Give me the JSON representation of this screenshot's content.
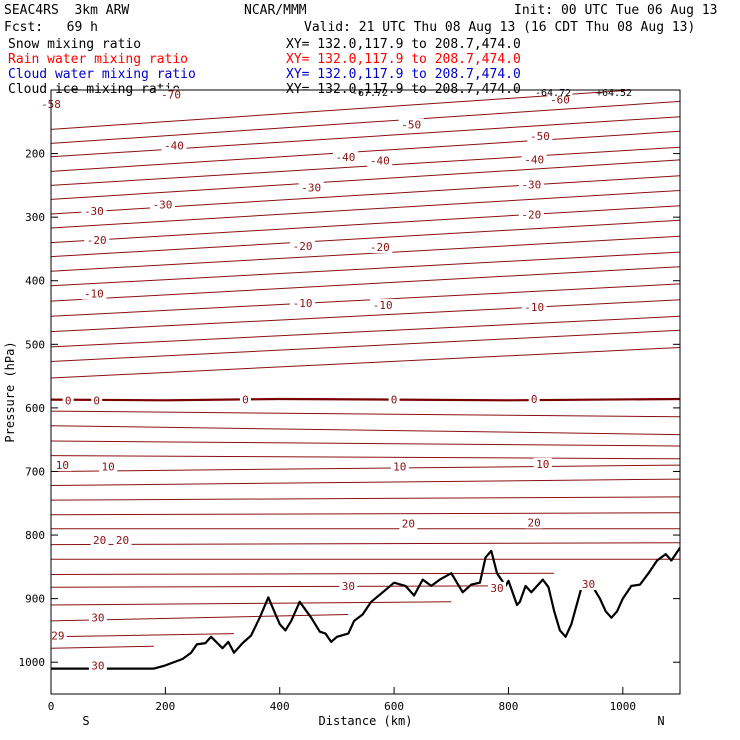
{
  "header": {
    "model": "SEAC4RS  3km ARW",
    "org": "NCAR/MMM",
    "init": "Init: 00 UTC Tue 06 Aug 13",
    "fcst": "Fcst:   69 h",
    "valid": "Valid: 21 UTC Thu 08 Aug 13 (16 CDT Thu 08 Aug 13)"
  },
  "legend": [
    {
      "name": "Snow mixing ratio",
      "xy": "XY= 132.0,117.9 to 208.7,474.0",
      "color": "#000000"
    },
    {
      "name": "Rain water mixing ratio",
      "xy": "XY= 132.0,117.9 to 208.7,474.0",
      "color": "#ff0000"
    },
    {
      "name": "Cloud water mixing ratio",
      "xy": "XY= 132.0,117.9 to 208.7,474.0",
      "color": "#0000cc"
    },
    {
      "name": "Cloud ice mixing ratio",
      "xy": "XY= 132.0,117.9 to 208.7,474.0",
      "color": "#000000"
    }
  ],
  "chart_data": {
    "type": "line",
    "xlabel": "Distance (km)",
    "ylabel": "Pressure (hPa)",
    "xlim": [
      0,
      1100
    ],
    "ylim": [
      1050,
      100
    ],
    "x_ticks": [
      0,
      200,
      400,
      600,
      800,
      1000
    ],
    "y_ticks": [
      200,
      300,
      400,
      500,
      600,
      700,
      800,
      900,
      1000
    ],
    "x_end_labels": {
      "left": "S",
      "right": "N"
    },
    "top_annotations": [
      "-67.72",
      "-64.72",
      "+64.52"
    ],
    "contour_color": "#8b1010",
    "freezing_level_color": "#7a0000",
    "terrain_color": "#000000",
    "contours": [
      {
        "points": [
          [
            0,
            162
          ],
          [
            1100,
            95
          ]
        ],
        "labels": [
          [
            0,
            122,
            "-58"
          ],
          [
            210,
            107,
            "-70"
          ]
        ]
      },
      {
        "points": [
          [
            0,
            184
          ],
          [
            1100,
            118
          ]
        ],
        "labels": [
          [
            890,
            115,
            "-60"
          ]
        ]
      },
      {
        "points": [
          [
            0,
            205
          ],
          [
            1100,
            142
          ]
        ],
        "labels": [
          [
            630,
            154,
            "-50"
          ]
        ]
      },
      {
        "points": [
          [
            0,
            228
          ],
          [
            1100,
            165
          ]
        ],
        "labels": [
          [
            855,
            172,
            "-50"
          ]
        ]
      },
      {
        "points": [
          [
            0,
            250
          ],
          [
            1100,
            190
          ]
        ],
        "labels": [
          [
            215,
            187,
            "-40"
          ],
          [
            515,
            205,
            "-40"
          ]
        ]
      },
      {
        "points": [
          [
            0,
            272
          ],
          [
            1100,
            210
          ]
        ],
        "labels": [
          [
            575,
            211,
            "-40"
          ],
          [
            845,
            209,
            "-40"
          ]
        ]
      },
      {
        "points": [
          [
            0,
            295
          ],
          [
            1100,
            235
          ]
        ],
        "labels": [
          [
            75,
            290,
            "-30"
          ],
          [
            195,
            280,
            "-30"
          ],
          [
            455,
            253,
            "-30"
          ]
        ]
      },
      {
        "points": [
          [
            0,
            317
          ],
          [
            1100,
            258
          ]
        ],
        "labels": [
          [
            840,
            249,
            "-30"
          ]
        ]
      },
      {
        "points": [
          [
            0,
            340
          ],
          [
            1100,
            282
          ]
        ],
        "labels": [
          [
            80,
            336,
            "-20"
          ]
        ]
      },
      {
        "points": [
          [
            0,
            362
          ],
          [
            1100,
            305
          ]
        ],
        "labels": [
          [
            440,
            345,
            "-20"
          ],
          [
            575,
            347,
            "-20"
          ]
        ]
      },
      {
        "points": [
          [
            0,
            385
          ],
          [
            1100,
            330
          ]
        ],
        "labels": [
          [
            840,
            296,
            "-20"
          ]
        ]
      },
      {
        "points": [
          [
            0,
            408
          ],
          [
            1100,
            355
          ]
        ],
        "labels": [
          [
            75,
            420,
            "-10"
          ]
        ]
      },
      {
        "points": [
          [
            0,
            432
          ],
          [
            1100,
            378
          ]
        ],
        "labels": [
          [
            440,
            435,
            "-10"
          ],
          [
            580,
            438,
            "-10"
          ],
          [
            845,
            441,
            "-10"
          ]
        ]
      },
      {
        "points": [
          [
            0,
            456
          ],
          [
            1100,
            405
          ]
        ],
        "labels": []
      },
      {
        "points": [
          [
            0,
            480
          ],
          [
            1100,
            430
          ]
        ],
        "labels": []
      },
      {
        "points": [
          [
            0,
            504
          ],
          [
            1100,
            456
          ]
        ],
        "labels": []
      },
      {
        "points": [
          [
            0,
            527
          ],
          [
            1100,
            478
          ]
        ],
        "labels": []
      },
      {
        "points": [
          [
            0,
            553
          ],
          [
            1100,
            505
          ]
        ],
        "labels": []
      },
      {
        "points": [
          [
            0,
            605
          ],
          [
            1100,
            614
          ]
        ],
        "labels": []
      },
      {
        "points": [
          [
            0,
            628
          ],
          [
            1100,
            642
          ]
        ],
        "labels": []
      },
      {
        "points": [
          [
            0,
            652
          ],
          [
            1100,
            660
          ]
        ],
        "labels": []
      },
      {
        "points": [
          [
            0,
            675
          ],
          [
            1100,
            680
          ]
        ],
        "labels": [
          [
            20,
            690,
            "10"
          ],
          [
            100,
            692,
            "10"
          ],
          [
            610,
            692,
            "10"
          ],
          [
            860,
            688,
            "10"
          ]
        ]
      },
      {
        "points": [
          [
            0,
            700
          ],
          [
            1100,
            690
          ]
        ],
        "labels": []
      },
      {
        "points": [
          [
            0,
            722
          ],
          [
            1100,
            712
          ]
        ],
        "labels": []
      },
      {
        "points": [
          [
            0,
            745
          ],
          [
            1100,
            740
          ]
        ],
        "labels": []
      },
      {
        "points": [
          [
            0,
            768
          ],
          [
            1100,
            765
          ]
        ],
        "labels": [
          [
            625,
            782,
            "20"
          ],
          [
            845,
            780,
            "20"
          ]
        ]
      },
      {
        "points": [
          [
            0,
            790
          ],
          [
            1100,
            790
          ]
        ],
        "labels": [
          [
            85,
            808,
            "20"
          ],
          [
            125,
            808,
            "20"
          ]
        ]
      },
      {
        "points": [
          [
            0,
            815
          ],
          [
            1100,
            812
          ]
        ],
        "labels": []
      },
      {
        "points": [
          [
            0,
            838
          ],
          [
            1100,
            838
          ]
        ],
        "labels": []
      },
      {
        "points": [
          [
            0,
            862
          ],
          [
            880,
            860
          ]
        ],
        "labels": []
      },
      {
        "points": [
          [
            0,
            882
          ],
          [
            780,
            880
          ]
        ],
        "labels": []
      },
      {
        "points": [
          [
            0,
            910
          ],
          [
            700,
            905
          ]
        ],
        "labels": [
          [
            82,
            930,
            "30"
          ],
          [
            520,
            880,
            "30"
          ],
          [
            780,
            883,
            "30"
          ],
          [
            940,
            877,
            "30"
          ]
        ]
      },
      {
        "points": [
          [
            0,
            935
          ],
          [
            520,
            925
          ]
        ],
        "labels": []
      },
      {
        "points": [
          [
            0,
            960
          ],
          [
            320,
            955
          ]
        ],
        "labels": [
          [
            12,
            958,
            "29"
          ]
        ]
      },
      {
        "points": [
          [
            0,
            978
          ],
          [
            180,
            975
          ]
        ],
        "labels": [
          [
            82,
            1005,
            "30"
          ]
        ]
      }
    ],
    "freezing_level": {
      "points": [
        [
          0,
          587
        ],
        [
          200,
          588
        ],
        [
          400,
          586
        ],
        [
          600,
          587
        ],
        [
          800,
          588
        ],
        [
          1100,
          586
        ]
      ],
      "labels": [
        [
          30,
          588,
          "0"
        ],
        [
          80,
          588,
          "0"
        ],
        [
          340,
          587,
          "0"
        ],
        [
          600,
          587,
          "0"
        ],
        [
          845,
          586,
          "0"
        ]
      ]
    },
    "terrain": [
      [
        0,
        1010
      ],
      [
        180,
        1010
      ],
      [
        200,
        1005
      ],
      [
        230,
        995
      ],
      [
        245,
        985
      ],
      [
        255,
        972
      ],
      [
        270,
        970
      ],
      [
        280,
        960
      ],
      [
        300,
        978
      ],
      [
        310,
        968
      ],
      [
        320,
        985
      ],
      [
        335,
        970
      ],
      [
        350,
        958
      ],
      [
        365,
        930
      ],
      [
        380,
        898
      ],
      [
        400,
        940
      ],
      [
        410,
        950
      ],
      [
        420,
        935
      ],
      [
        435,
        905
      ],
      [
        455,
        930
      ],
      [
        470,
        952
      ],
      [
        480,
        955
      ],
      [
        490,
        968
      ],
      [
        500,
        960
      ],
      [
        520,
        955
      ],
      [
        530,
        935
      ],
      [
        545,
        925
      ],
      [
        560,
        905
      ],
      [
        580,
        890
      ],
      [
        600,
        875
      ],
      [
        620,
        880
      ],
      [
        635,
        895
      ],
      [
        650,
        870
      ],
      [
        665,
        880
      ],
      [
        680,
        870
      ],
      [
        700,
        860
      ],
      [
        720,
        890
      ],
      [
        735,
        878
      ],
      [
        750,
        875
      ],
      [
        760,
        835
      ],
      [
        770,
        825
      ],
      [
        780,
        860
      ],
      [
        795,
        880
      ],
      [
        800,
        872
      ],
      [
        815,
        910
      ],
      [
        820,
        905
      ],
      [
        830,
        880
      ],
      [
        840,
        890
      ],
      [
        860,
        870
      ],
      [
        870,
        882
      ],
      [
        880,
        920
      ],
      [
        890,
        950
      ],
      [
        900,
        960
      ],
      [
        910,
        940
      ],
      [
        930,
        875
      ],
      [
        940,
        870
      ],
      [
        960,
        900
      ],
      [
        970,
        920
      ],
      [
        980,
        930
      ],
      [
        990,
        920
      ],
      [
        1000,
        900
      ],
      [
        1015,
        880
      ],
      [
        1030,
        878
      ],
      [
        1045,
        860
      ],
      [
        1060,
        840
      ],
      [
        1075,
        830
      ],
      [
        1085,
        840
      ],
      [
        1100,
        820
      ]
    ]
  }
}
